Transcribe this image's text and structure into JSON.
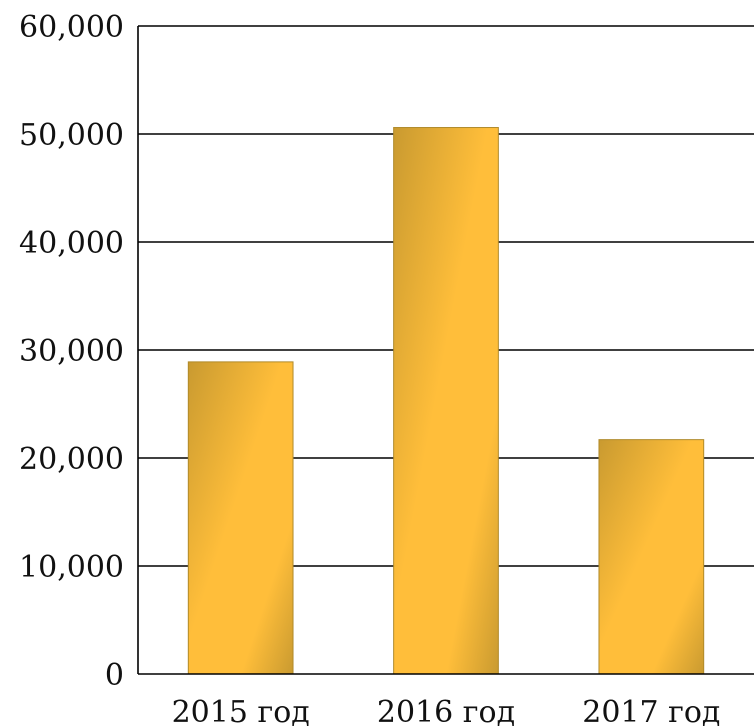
{
  "chart_data": {
    "type": "bar",
    "categories": [
      "2015 год",
      "2016 год",
      "2017 год"
    ],
    "values": [
      28900,
      50600,
      21700
    ],
    "ylim": [
      0,
      60000
    ],
    "y_ticks": [
      0,
      10000,
      20000,
      30000,
      40000,
      50000,
      60000
    ],
    "y_tick_labels": [
      "0",
      "10,000",
      "20,000",
      "30,000",
      "40,000",
      "50,000",
      "60,000"
    ],
    "title": "",
    "xlabel": "",
    "ylabel": "",
    "grid": true,
    "legend": "none",
    "colors": {
      "bar_light": "#ffbe3a",
      "bar_dark": "#c99a30",
      "bar_edge": "#b08a2a"
    }
  }
}
